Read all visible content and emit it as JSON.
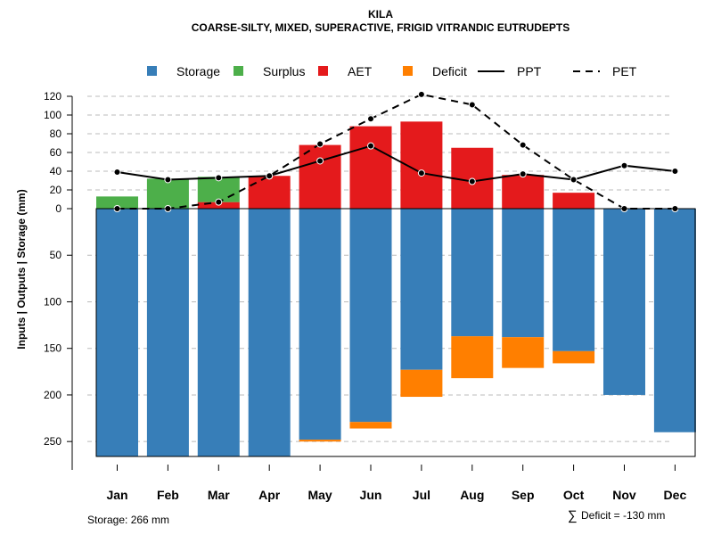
{
  "chart_data": {
    "type": "bar",
    "title": "KILA",
    "subtitle": "COARSE-SILTY, MIXED, SUPERACTIVE, FRIGID VITRANDIC EUTRUDEPTS",
    "ylabel": "Inputs | Outputs | Storage     (mm)",
    "categories": [
      "Jan",
      "Feb",
      "Mar",
      "Apr",
      "May",
      "Jun",
      "Jul",
      "Aug",
      "Sep",
      "Oct",
      "Nov",
      "Dec"
    ],
    "top_ticks": [
      "120",
      "100",
      "80",
      "60",
      "40",
      "20",
      "0"
    ],
    "top_tick_values": [
      120,
      100,
      80,
      60,
      40,
      20,
      0
    ],
    "bottom_ticks": [
      "50",
      "100",
      "150",
      "200",
      "250"
    ],
    "bottom_tick_values": [
      50,
      100,
      150,
      200,
      250
    ],
    "ylim_top": [
      0,
      125
    ],
    "ylim_bottom": [
      0,
      266
    ],
    "legend": [
      {
        "label": "Storage",
        "kind": "square",
        "color": "#377EB8"
      },
      {
        "label": "Surplus",
        "kind": "square",
        "color": "#4DAF4A"
      },
      {
        "label": "AET",
        "kind": "square",
        "color": "#E41A1C"
      },
      {
        "label": "Deficit",
        "kind": "square",
        "color": "#FF7F00"
      },
      {
        "label": "PPT",
        "kind": "solid-line",
        "color": "#000000"
      },
      {
        "label": "PET",
        "kind": "dashed-line",
        "color": "#000000"
      }
    ],
    "series": [
      {
        "name": "Storage",
        "color": "#377EB8",
        "values": [
          266,
          266,
          266,
          266,
          248,
          229,
          173,
          137,
          138,
          153,
          200,
          240
        ]
      },
      {
        "name": "Deficit",
        "color": "#FF7F00",
        "values": [
          0,
          0,
          0,
          0,
          2,
          7,
          29,
          45,
          33,
          13,
          0,
          0
        ]
      },
      {
        "name": "AET",
        "color": "#E41A1C",
        "values": [
          0,
          0,
          7,
          35,
          68,
          88,
          93,
          65,
          36,
          17,
          0,
          0
        ]
      },
      {
        "name": "Surplus",
        "color": "#4DAF4A",
        "values": [
          13,
          32,
          27,
          0,
          0,
          0,
          0,
          0,
          0,
          0,
          0,
          0
        ]
      },
      {
        "name": "PPT",
        "color": "#000000",
        "values": [
          39,
          31,
          33,
          35,
          51,
          67,
          38,
          29,
          37,
          31,
          46,
          40
        ]
      },
      {
        "name": "PET",
        "color": "#000000",
        "values": [
          0,
          0,
          7,
          35,
          69,
          96,
          122,
          111,
          68,
          31,
          0,
          0
        ]
      }
    ],
    "grid": true
  },
  "footer": {
    "storage_label": "Storage: 266 mm",
    "deficit_symbol": "∑",
    "deficit_label": "Deficit = -130 mm"
  }
}
